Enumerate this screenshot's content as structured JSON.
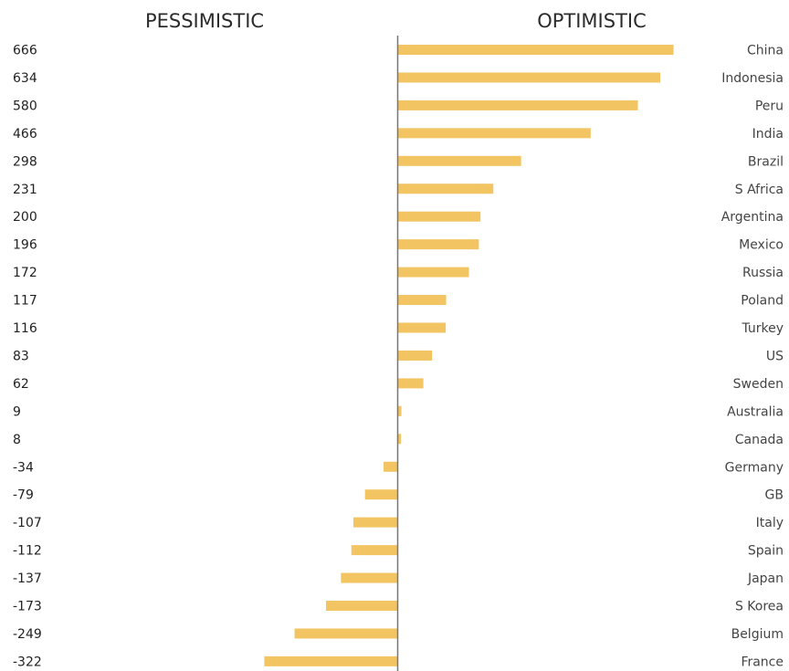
{
  "headers": {
    "left": "PESSIMISTIC",
    "right": "OPTIMISTIC"
  },
  "colors": {
    "bar": "#F2C462",
    "axis": "#777777"
  },
  "chart_data": {
    "type": "bar",
    "orientation": "horizontal",
    "categories": [
      "China",
      "Indonesia",
      "Peru",
      "India",
      "Brazil",
      "S Africa",
      "Argentina",
      "Mexico",
      "Russia",
      "Poland",
      "Turkey",
      "US",
      "Sweden",
      "Australia",
      "Canada",
      "Germany",
      "GB",
      "Italy",
      "Spain",
      "Japan",
      "S Korea",
      "Belgium",
      "France"
    ],
    "values": [
      666,
      634,
      580,
      466,
      298,
      231,
      200,
      196,
      172,
      117,
      116,
      83,
      62,
      9,
      8,
      -34,
      -79,
      -107,
      -112,
      -137,
      -173,
      -249,
      -322
    ],
    "value_labels": [
      "666",
      "634",
      "580",
      "466",
      "298",
      "231",
      "200",
      "196",
      "172",
      "117",
      "116",
      "83",
      "62",
      "9",
      "8",
      "-34",
      "-79",
      "-107",
      "-112",
      "-137",
      "-173",
      "-249",
      "-322"
    ],
    "title": "",
    "xlabel": "",
    "ylabel": "",
    "grid": false,
    "legend": "none"
  }
}
